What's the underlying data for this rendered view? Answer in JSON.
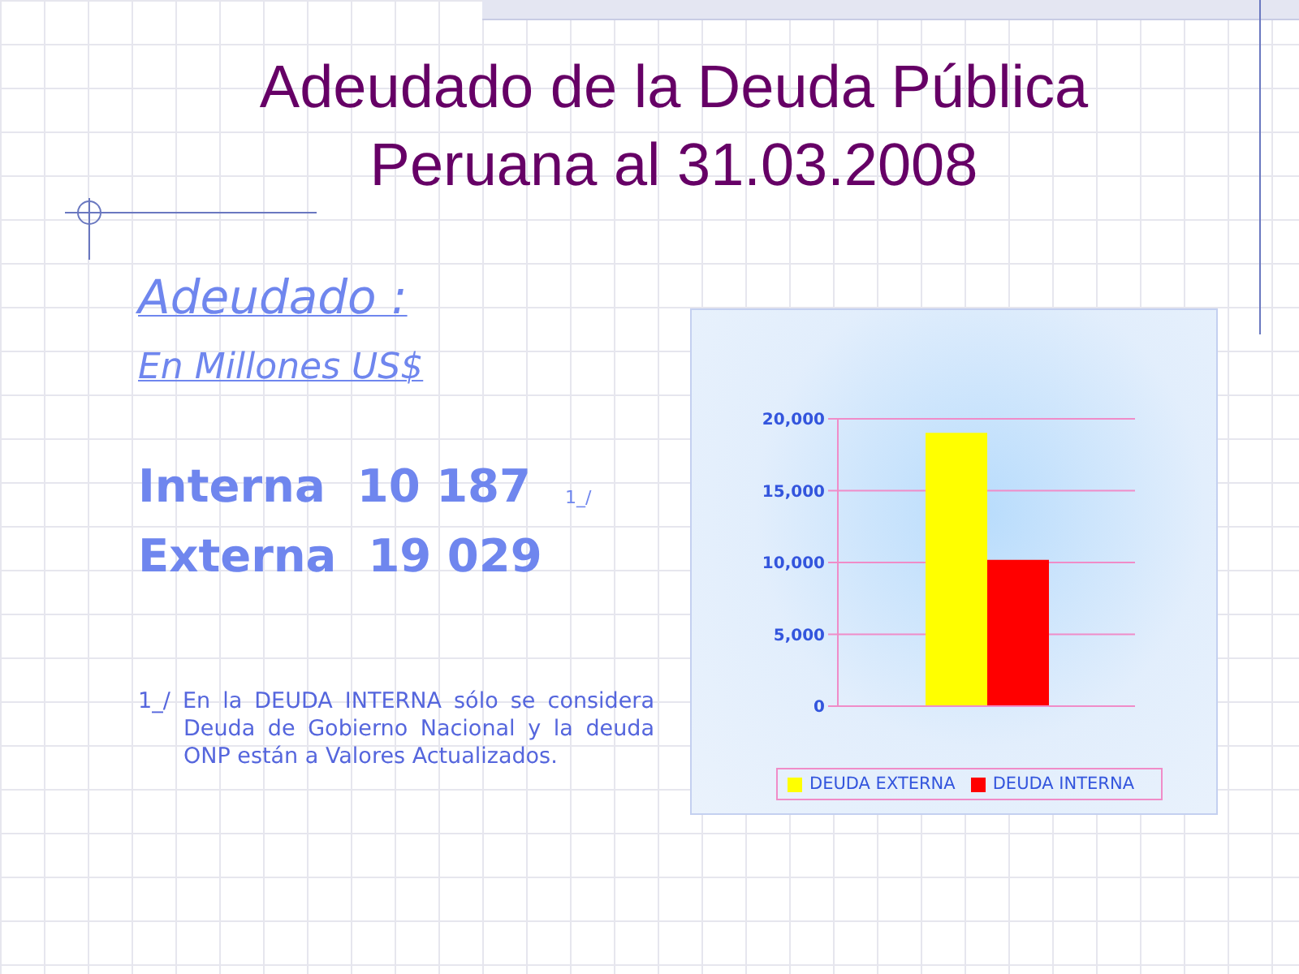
{
  "chart_data": {
    "type": "bar",
    "title": "Adeudado de la Deuda Pública Peruana al 31.03.2008",
    "categories": [
      null
    ],
    "series": [
      {
        "name": "DEUDA EXTERNA",
        "color": "#ffff00",
        "values": [
          19029
        ]
      },
      {
        "name": "DEUDA INTERNA",
        "color": "#ff0000",
        "values": [
          10187
        ]
      }
    ],
    "ylim": [
      0,
      20000
    ],
    "yticks": [
      0,
      {
        "value": 5000,
        "label": "5,000"
      },
      {
        "value": 10000,
        "label": "10,000"
      },
      {
        "value": 15000,
        "label": "15,000"
      },
      {
        "value": 20000,
        "label": "20,000"
      }
    ],
    "grid": "y",
    "legend": "bottom",
    "annotations": [
      "Adeudado :",
      "En Millones US$",
      "Interna  10 187",
      "1_/",
      "Externa  19 029",
      "1_/ En la DEUDA INTERNA sólo se considera Deuda de Gobierno Nacional y la deuda ONP están a Valores Actualizados."
    ]
  }
}
